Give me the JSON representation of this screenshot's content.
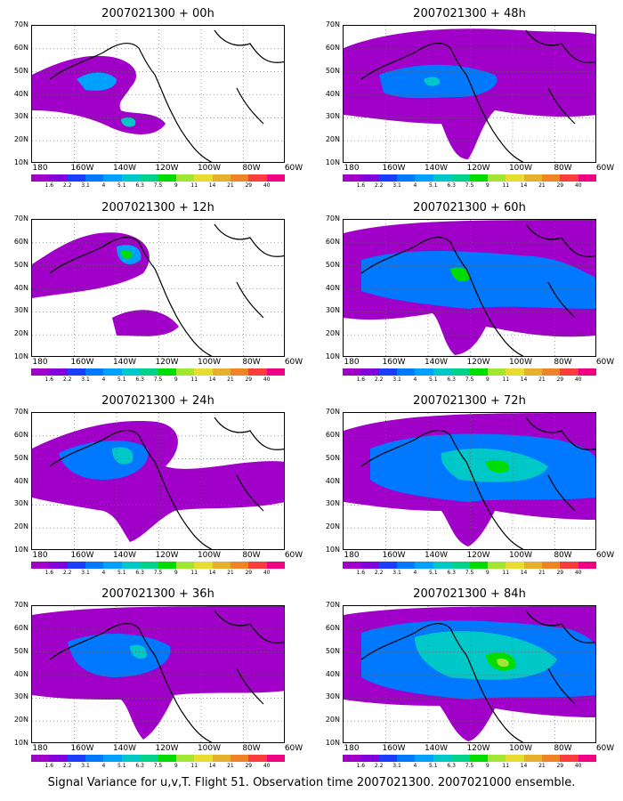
{
  "panels": [
    {
      "title": "2007021300 + 00h",
      "variant": "p00"
    },
    {
      "title": "2007021300 + 48h",
      "variant": "p48"
    },
    {
      "title": "2007021300 + 12h",
      "variant": "p12"
    },
    {
      "title": "2007021300 + 60h",
      "variant": "p60"
    },
    {
      "title": "2007021300 + 24h",
      "variant": "p24"
    },
    {
      "title": "2007021300 + 72h",
      "variant": "p72"
    },
    {
      "title": "2007021300 + 36h",
      "variant": "p36"
    },
    {
      "title": "2007021300 + 84h",
      "variant": "p84"
    }
  ],
  "axes": {
    "lat_labels": [
      "70N",
      "60N",
      "50N",
      "40N",
      "30N",
      "20N",
      "10N"
    ],
    "lon_labels": [
      "180",
      "160W",
      "140W",
      "120W",
      "100W",
      "80W",
      "60W"
    ]
  },
  "colorbar": {
    "labels": [
      "1.6",
      "2.2",
      "3.1",
      "4",
      "5.1",
      "6.3",
      "7.5",
      "9",
      "11",
      "14",
      "21",
      "29",
      "40"
    ],
    "colors": [
      "#a000c8",
      "#8200dc",
      "#1e3cff",
      "#0078ff",
      "#00a0ff",
      "#00c8c8",
      "#00d28c",
      "#00dc00",
      "#a0e632",
      "#e6dc32",
      "#e6af2d",
      "#f08228",
      "#fa3c3c",
      "#f00082"
    ]
  },
  "caption": "Signal Variance for u,v,T. Flight 51. Observation time 2007021300. 2007021000 ensemble."
}
